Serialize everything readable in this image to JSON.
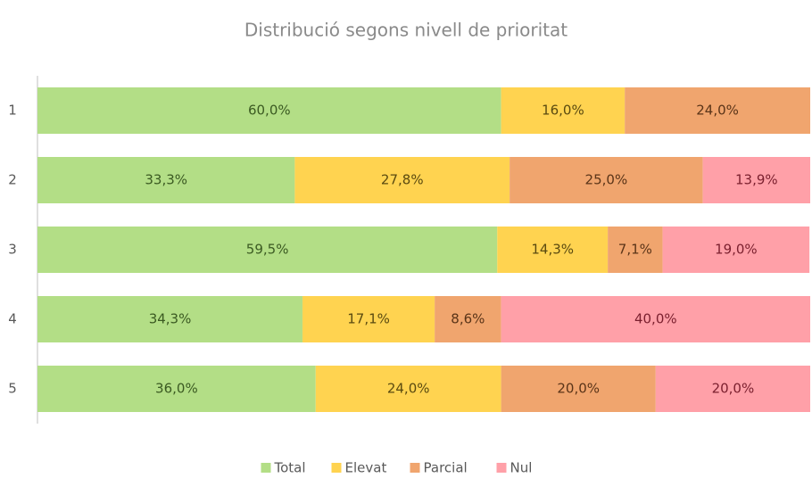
{
  "chart_data": {
    "type": "stacked-bar-horizontal",
    "title": "Distribució segons nivell de prioritat",
    "categories": [
      "1",
      "2",
      "3",
      "4",
      "5"
    ],
    "xlim": [
      0,
      100
    ],
    "legend": "bottom",
    "series": [
      {
        "name": "Total",
        "color": "#b3de86",
        "label_color": "#3b5a22",
        "values": [
          60.0,
          33.3,
          59.5,
          34.3,
          36.0
        ],
        "value_labels": [
          "60,0%",
          "33,3%",
          "59,5%",
          "34,3%",
          "36,0%"
        ]
      },
      {
        "name": "Elevat",
        "color": "#ffd350",
        "label_color": "#5a4a10",
        "values": [
          16.0,
          27.8,
          14.3,
          17.1,
          24.0
        ],
        "value_labels": [
          "16,0%",
          "27,8%",
          "14,3%",
          "17,1%",
          "24,0%"
        ]
      },
      {
        "name": "Parcial",
        "color": "#f0a56e",
        "label_color": "#5a3418",
        "values": [
          24.0,
          25.0,
          7.1,
          8.6,
          20.0
        ],
        "value_labels": [
          "24,0%",
          "25,0%",
          "7,1%",
          "8,6%",
          "20,0%"
        ]
      },
      {
        "name": "Nul",
        "color": "#ffa0a8",
        "label_color": "#7a1f2e",
        "values": [
          null,
          13.9,
          19.0,
          40.0,
          20.0
        ],
        "value_labels": [
          null,
          "13,9%",
          "19,0%",
          "40,0%",
          "20,0%"
        ]
      }
    ]
  }
}
